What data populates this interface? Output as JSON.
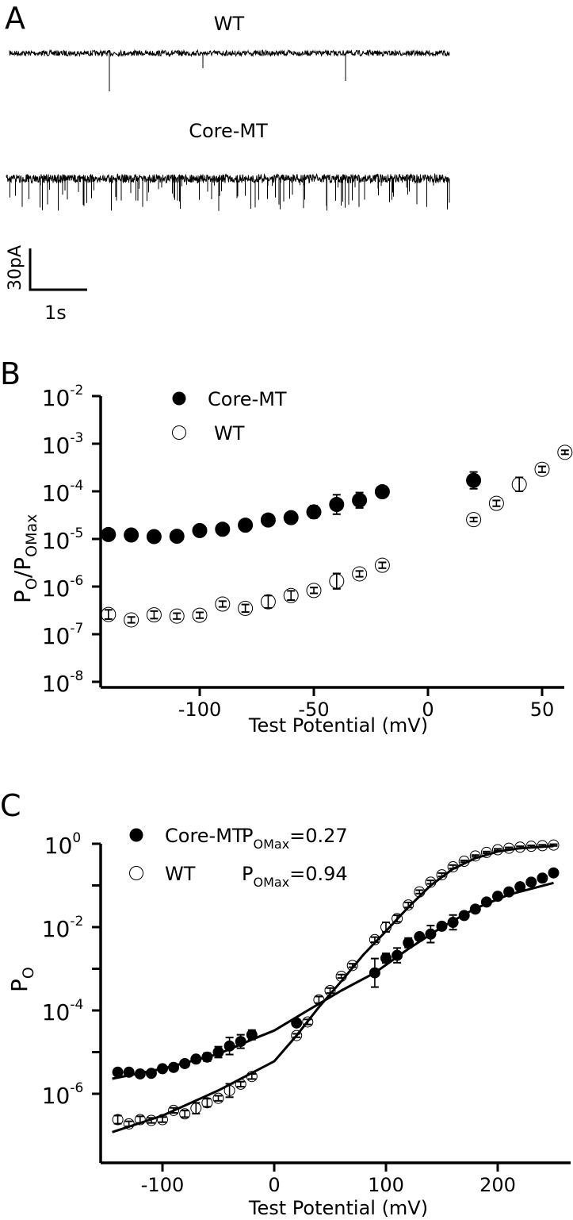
{
  "panel_a": {
    "letter": "A",
    "trace_labels": [
      "WT",
      "Core-MT"
    ],
    "scale_bar": {
      "current_label": "30pA",
      "time_label": "1s"
    }
  },
  "chart_data": [
    {
      "panel": "B",
      "type": "scatter",
      "ylabel": {
        "main": "P",
        "sub1": "O",
        "slash": "/P",
        "sub2": "OMax"
      },
      "xlabel": "Test Potential (mV)",
      "yscale": "log",
      "ylim": [
        1e-08,
        0.01
      ],
      "xlim": [
        -145,
        60
      ],
      "xticks": [
        -100,
        -50,
        0,
        50
      ],
      "xtick_labels": [
        "-100",
        "-50",
        "0",
        "50"
      ],
      "yticks": [
        {
          "base": "10",
          "exp": "-2"
        },
        {
          "base": "10",
          "exp": "-3"
        },
        {
          "base": "10",
          "exp": "-4"
        },
        {
          "base": "10",
          "exp": "-5"
        },
        {
          "base": "10",
          "exp": "-6"
        },
        {
          "base": "10",
          "exp": "-7"
        },
        {
          "base": "10",
          "exp": "-8"
        }
      ],
      "grid": false,
      "legend_position": "top-left",
      "series": [
        {
          "name": "Core-MT",
          "marker": "filled-circle",
          "x": [
            -140,
            -130,
            -120,
            -110,
            -100,
            -90,
            -80,
            -70,
            -60,
            -50,
            -40,
            -30,
            -20,
            20
          ],
          "y": [
            1.24e-05,
            1.21e-05,
            1.12e-05,
            1.14e-05,
            1.5e-05,
            1.6e-05,
            1.95e-05,
            2.5e-05,
            2.8e-05,
            3.7e-05,
            5.3e-05,
            6.5e-05,
            9.8e-05,
            0.00017
          ],
          "err_factor": [
            1.05,
            1.05,
            1.05,
            1.05,
            1.05,
            1.08,
            1.12,
            1.1,
            1.25,
            1.35,
            1.6,
            1.45,
            1.3,
            1.5
          ]
        },
        {
          "name": "WT",
          "marker": "open-circle",
          "x": [
            -140,
            -130,
            -120,
            -110,
            -100,
            -90,
            -80,
            -70,
            -60,
            -50,
            -40,
            -30,
            -20,
            20,
            30,
            40,
            50,
            60
          ],
          "y": [
            2.6e-07,
            2e-07,
            2.55e-07,
            2.4e-07,
            2.5e-07,
            4.3e-07,
            3.5e-07,
            4.8e-07,
            6.5e-07,
            8.3e-07,
            1.3e-06,
            1.85e-06,
            2.8e-06,
            2.55e-05,
            5.6e-05,
            0.00014,
            0.00029,
            0.00066
          ],
          "err_factor": [
            1.25,
            1.15,
            1.2,
            1.15,
            1.15,
            1.15,
            1.2,
            1.35,
            1.25,
            1.15,
            1.45,
            1.15,
            1.15,
            1.1,
            1.15,
            1.4,
            1.15,
            1.1
          ]
        }
      ]
    },
    {
      "panel": "C",
      "type": "scatter",
      "ylabel": {
        "main": "P",
        "sub1": "O"
      },
      "xlabel": "Test Potential (mV)",
      "yscale": "log",
      "ylim": [
        2.2e-08,
        1
      ],
      "xlim": [
        -150,
        250
      ],
      "xticks": [
        -100,
        0,
        100,
        200
      ],
      "xtick_labels": [
        "-100",
        "0",
        "100",
        "200"
      ],
      "yticks": [
        {
          "value": 1,
          "base": "10",
          "exp": "0"
        },
        {
          "value": 0.01,
          "base": "10",
          "exp": "-2"
        },
        {
          "value": 0.0001,
          "base": "10",
          "exp": "-4"
        },
        {
          "value": 1e-06,
          "base": "10",
          "exp": "-6"
        }
      ],
      "minor_yticks": [
        0.1,
        0.001,
        1e-05
      ],
      "grid": false,
      "legend_position": "top-left",
      "series": [
        {
          "name": "Core-MT",
          "marker": "filled-circle",
          "pomax_label": {
            "p": "P",
            "sub": "OMax",
            "value": "=0.27"
          },
          "x": [
            -140,
            -130,
            -120,
            -110,
            -100,
            -90,
            -80,
            -70,
            -60,
            -50,
            -40,
            -30,
            -20,
            20,
            90,
            100,
            110,
            120,
            130,
            140,
            150,
            160,
            170,
            180,
            190,
            200,
            210,
            220,
            230,
            240,
            250
          ],
          "y": [
            3.3e-06,
            3.3e-06,
            3e-06,
            3.1e-06,
            4e-06,
            4.3e-06,
            5.3e-06,
            6.8e-06,
            7.6e-06,
            1e-05,
            1.4e-05,
            1.8e-05,
            2.6e-05,
            5e-05,
            0.0008,
            0.0018,
            0.0021,
            0.0042,
            0.0059,
            0.0068,
            0.0105,
            0.013,
            0.019,
            0.027,
            0.04,
            0.055,
            0.07,
            0.093,
            0.12,
            0.15,
            0.2
          ],
          "err_factor": [
            1.05,
            1.05,
            1.05,
            1.05,
            1.05,
            1.08,
            1.12,
            1.1,
            1.25,
            1.35,
            1.6,
            1.45,
            1.3,
            1.2,
            2.2,
            1.3,
            1.5,
            1.3,
            1.2,
            1.6,
            1.2,
            1.5,
            1.2,
            1.2,
            1.15,
            1.15,
            1.1,
            1.1,
            1.1,
            1.1,
            1.1
          ],
          "fit": {
            "x": [
              -145,
              -100,
              -50,
              -20,
              0,
              30,
              60,
              90,
              120,
              150,
              180,
              210,
              250
            ],
            "y": [
              2.3e-06,
              4e-06,
              9e-06,
              2e-05,
              3.3e-05,
              0.0001,
              0.0003,
              0.0008,
              0.003,
              0.01,
              0.028,
              0.06,
              0.115
            ]
          }
        },
        {
          "name": "WT",
          "marker": "open-circle",
          "pomax_label": {
            "p": "P",
            "sub": "OMax",
            "value": "=0.94"
          },
          "x": [
            -140,
            -130,
            -120,
            -110,
            -100,
            -90,
            -80,
            -70,
            -60,
            -50,
            -40,
            -30,
            -20,
            20,
            30,
            40,
            50,
            60,
            70,
            90,
            100,
            110,
            120,
            130,
            140,
            150,
            160,
            170,
            180,
            190,
            200,
            210,
            220,
            230,
            240,
            250
          ],
          "y": [
            2.4e-07,
            1.9e-07,
            2.4e-07,
            2.3e-07,
            2.4e-07,
            4e-07,
            3.3e-07,
            4.5e-07,
            6.1e-07,
            7.8e-07,
            1.2e-06,
            1.7e-06,
            2.6e-06,
            2.5e-05,
            5.3e-05,
            0.00018,
            0.0003,
            0.00066,
            0.0012,
            0.005,
            0.01,
            0.016,
            0.034,
            0.07,
            0.12,
            0.18,
            0.28,
            0.38,
            0.51,
            0.62,
            0.72,
            0.78,
            0.83,
            0.87,
            0.9,
            0.93
          ],
          "err_factor": [
            1.25,
            1.15,
            1.2,
            1.15,
            1.15,
            1.15,
            1.2,
            1.35,
            1.25,
            1.15,
            1.45,
            1.15,
            1.15,
            1.1,
            1.15,
            1.2,
            1.15,
            1.1,
            1.1,
            1.15,
            1.3,
            1.2,
            1.15,
            1.1,
            1.1,
            1.1,
            1.1,
            1.05,
            1.05,
            1.05,
            1.05,
            1.05,
            1.05,
            1.05,
            1.05,
            1.05
          ],
          "fit": {
            "x": [
              -145,
              -100,
              -50,
              0,
              20,
              40,
              60,
              80,
              100,
              120,
              140,
              160,
              180,
              200,
              220,
              250
            ],
            "y": [
              1.2e-07,
              3e-07,
              1.2e-06,
              6e-06,
              2.5e-05,
              0.00012,
              0.0005,
              0.0022,
              0.008,
              0.03,
              0.1,
              0.25,
              0.45,
              0.65,
              0.78,
              0.88
            ]
          }
        }
      ]
    }
  ]
}
